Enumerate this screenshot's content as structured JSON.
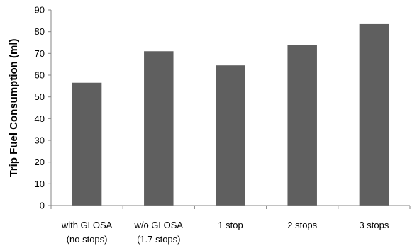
{
  "chart_data": {
    "type": "bar",
    "title": "",
    "xlabel": "",
    "ylabel": "Trip Fuel Consumption (ml)",
    "ylim": [
      0,
      90
    ],
    "yticks": [
      0,
      10,
      20,
      30,
      40,
      50,
      60,
      70,
      80,
      90
    ],
    "grid": false,
    "legend": "none",
    "bar_color": "#5f5f5f",
    "categories": [
      [
        "with GLOSA",
        "(no stops)"
      ],
      [
        "w/o GLOSA",
        "(1.7 stops)"
      ],
      [
        "1 stop"
      ],
      [
        "2 stops"
      ],
      [
        "3 stops"
      ]
    ],
    "values": [
      56.5,
      71,
      64.5,
      74,
      83.5
    ]
  }
}
